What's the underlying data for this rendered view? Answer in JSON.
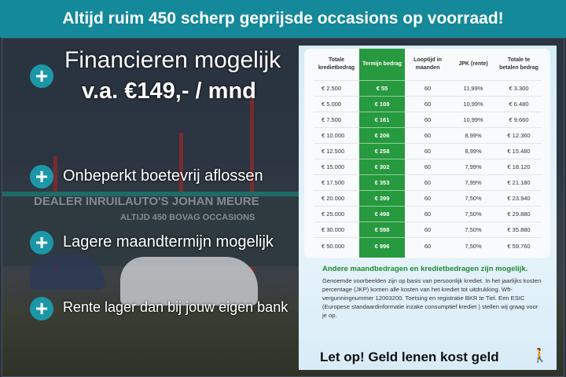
{
  "header": {
    "title": "Altijd ruim 450 scherp geprijsde occasions op voorraad!",
    "color": "#14899a"
  },
  "photo": {
    "sign_main": "DEALER INRUILAUTO'S JOHAN MEURE",
    "sign_sub": "ALTIJD 450 BOVAG OCCASIONS"
  },
  "financing": {
    "title": "Financieren mogelijk",
    "price": "v.a. €149,- / mnd"
  },
  "features": [
    "Onbeperkt boetevrij aflossen",
    "Lagere maandtermijn mogelijk",
    "Rente lager dan bij jouw eigen bank"
  ],
  "icons": {
    "bullet": "plus-circle-icon",
    "warning": "walking-person-icon"
  },
  "table": {
    "headers": [
      "Totale kredietbedrag",
      "Termijn bedrag",
      "Looptijd in maanden",
      "JPK (rente)",
      "Totale te betalen bedrag"
    ],
    "highlight_color": "#27993f",
    "rows": [
      [
        "€ 2.500",
        "€ 55",
        "60",
        "11,99%",
        "€ 3.300"
      ],
      [
        "€ 5.000",
        "€ 108",
        "60",
        "10,99%",
        "€ 6.480"
      ],
      [
        "€ 7.500",
        "€ 161",
        "60",
        "10,99%",
        "€ 9.660"
      ],
      [
        "€ 10.000",
        "€ 206",
        "60",
        "8,99%",
        "€ 12.360"
      ],
      [
        "€ 12.500",
        "€ 258",
        "60",
        "8,99%",
        "€ 15.480"
      ],
      [
        "€ 15.000",
        "€ 302",
        "60",
        "7,99%",
        "€ 18.120"
      ],
      [
        "€ 17.500",
        "€ 353",
        "60",
        "7,99%",
        "€ 21.180"
      ],
      [
        "€ 20.000",
        "€ 399",
        "60",
        "7,50%",
        "€ 23.940"
      ],
      [
        "€ 25.000",
        "€ 498",
        "60",
        "7,50%",
        "€ 29.880"
      ],
      [
        "€ 30.000",
        "€ 598",
        "60",
        "7,50%",
        "€ 35.880"
      ],
      [
        "€ 50.000",
        "€ 996",
        "60",
        "7,50%",
        "€ 59.760"
      ]
    ]
  },
  "note": {
    "title": "Andere maandbedragen en kredietbedragen zijn mogelijk.",
    "body": "Genoemde voorbeelden zijn op basis van persoonlijk krediet. In het jaarlijks kosten percentage (JKP) komen alle kosten van het krediet tot uitdrukking. Wft-vergunningnummer 12003200. Toetsing en registratie BKR te Tiel. Een ESIC (Europese standaardinformatie inzake consumptief krediet ) stellen wij graag voor je op."
  },
  "warning": "Let op! Geld lenen kost geld"
}
